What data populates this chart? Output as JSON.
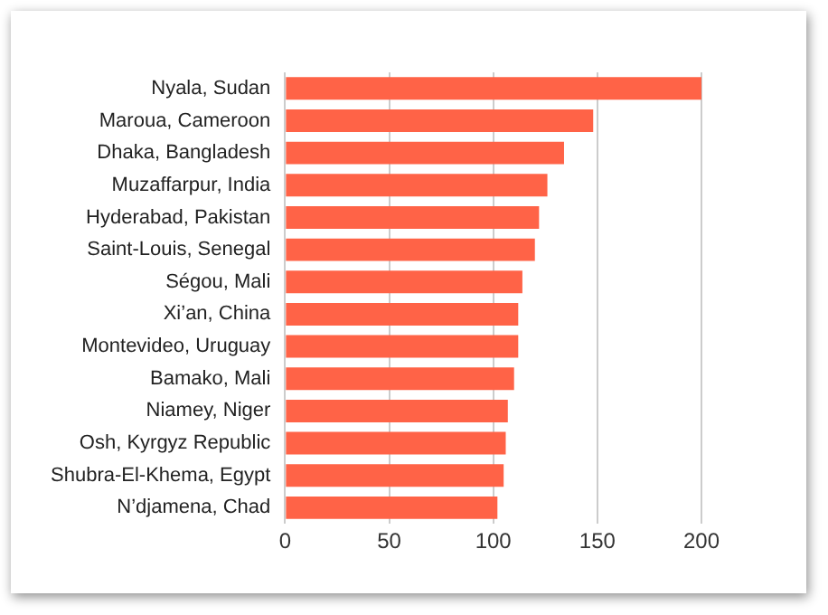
{
  "chart_data": {
    "type": "bar",
    "orientation": "horizontal",
    "categories": [
      "Nyala, Sudan",
      "Maroua, Cameroon",
      "Dhaka, Bangladesh",
      "Muzaffarpur, India",
      "Hyderabad, Pakistan",
      "Saint-Louis, Senegal",
      "Ségou, Mali",
      "Xi’an, China",
      "Montevideo, Uruguay",
      "Bamako, Mali",
      "Niamey, Niger",
      "Osh, Kyrgyz Republic",
      "Shubra-El-Khema, Egypt",
      "N’djamena, Chad"
    ],
    "values": [
      200,
      148,
      134,
      126,
      122,
      120,
      114,
      112,
      112,
      110,
      107,
      106,
      105,
      102
    ],
    "color": "#ff6347",
    "xlim": [
      0,
      200
    ],
    "xticks": [
      0,
      50,
      100,
      150,
      200
    ],
    "grid": "x"
  }
}
